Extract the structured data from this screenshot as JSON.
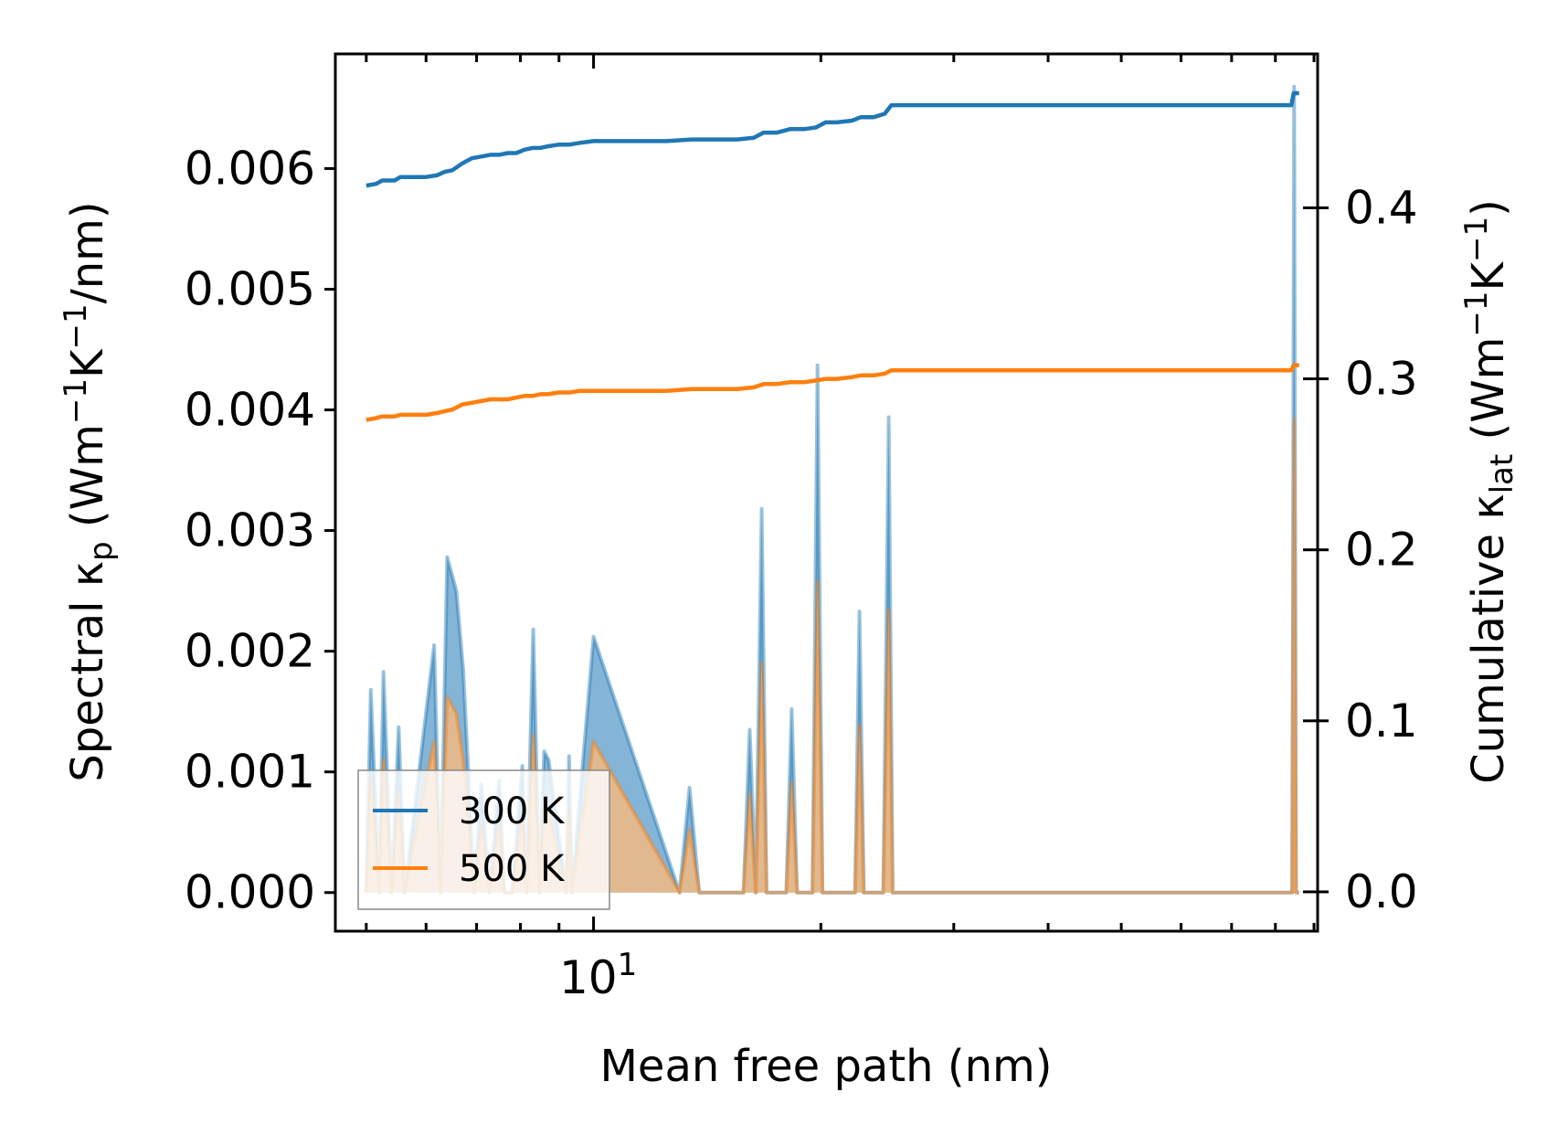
{
  "chart_data": {
    "type": "line",
    "xscale": "log",
    "xlim": [
      4.55,
      91
    ],
    "ylim": [
      -0.00032,
      0.00695
    ],
    "y2lim": [
      -0.023,
      0.49
    ],
    "xlabel": "Mean free path (nm)",
    "ylabel_left": {
      "main": "Spectral κ",
      "sub": "p",
      "rest": " (Wm",
      "sup1": "−1",
      "mid": "K",
      "sup2": "−1",
      "end": "/nm)"
    },
    "ylabel_right": {
      "main": "Cumulative κ",
      "sub": "lat",
      "rest": " (Wm",
      "sup1": "−1",
      "mid": "K",
      "sup2": "−1",
      "end": ")"
    },
    "x_ticks": [
      {
        "value": 10,
        "base": "10",
        "exp": "1"
      }
    ],
    "y_ticks_left": [
      {
        "value": 0.0,
        "label": "0.000"
      },
      {
        "value": 0.001,
        "label": "0.001"
      },
      {
        "value": 0.002,
        "label": "0.002"
      },
      {
        "value": 0.003,
        "label": "0.003"
      },
      {
        "value": 0.004,
        "label": "0.004"
      },
      {
        "value": 0.005,
        "label": "0.005"
      },
      {
        "value": 0.006,
        "label": "0.006"
      }
    ],
    "y_ticks_right": [
      {
        "value": 0.0,
        "label": "0.0"
      },
      {
        "value": 0.1,
        "label": "0.1"
      },
      {
        "value": 0.2,
        "label": "0.2"
      },
      {
        "value": 0.3,
        "label": "0.3"
      },
      {
        "value": 0.4,
        "label": "0.4"
      }
    ],
    "x_minor_ticks": [
      5,
      6,
      7,
      8,
      9,
      20,
      30,
      40,
      50,
      60,
      70,
      80,
      90
    ],
    "spectral_x": [
      5.0,
      5.07,
      5.2,
      5.27,
      5.4,
      5.52,
      5.62,
      6.15,
      6.27,
      6.4,
      6.58,
      6.72,
      6.95,
      7.1,
      7.28,
      7.5,
      7.62,
      7.8,
      8.05,
      8.15,
      8.32,
      8.48,
      8.6,
      8.72,
      9.2,
      9.28,
      9.36,
      10.0,
      13.0,
      13.4,
      13.8,
      15.8,
      16.1,
      16.4,
      16.7,
      16.95,
      17.3,
      18.0,
      18.3,
      18.6,
      19.5,
      19.8,
      20.1,
      22.2,
      22.5,
      22.8,
      24.2,
      24.6,
      24.9,
      84.2,
      84.7,
      85.2,
      86.0
    ],
    "series": [
      {
        "name": "300 K",
        "color": "#1f77b4",
        "fill": "#1f77b4",
        "spectral": [
          0,
          0.00168,
          0,
          0.00183,
          0,
          0.00137,
          0,
          0.00205,
          0,
          0.00278,
          0.0025,
          0.00185,
          0,
          0.0009,
          0,
          0.00093,
          0,
          0,
          0.00105,
          0,
          0.00218,
          0,
          0.00117,
          0.0011,
          0,
          0.00113,
          0,
          0.00212,
          0,
          0.00087,
          0,
          0,
          0.00135,
          0,
          0.00318,
          0,
          0,
          0,
          0.00152,
          0,
          0,
          0.00437,
          0,
          0,
          0.00233,
          0,
          0,
          0.00394,
          0,
          0,
          0.00668,
          0,
          0
        ],
        "cumulative_x": [
          5.0,
          5.15,
          5.25,
          5.45,
          5.55,
          5.75,
          6.0,
          6.2,
          6.35,
          6.5,
          6.7,
          6.9,
          7.1,
          7.3,
          7.5,
          7.7,
          7.9,
          8.1,
          8.3,
          8.5,
          8.7,
          9.0,
          9.3,
          9.6,
          10.0,
          11.0,
          12.5,
          13.5,
          14.5,
          15.5,
          16.3,
          16.8,
          17.5,
          18.2,
          19.0,
          19.7,
          20.3,
          21.0,
          22.0,
          22.6,
          23.5,
          24.3,
          24.8,
          30.0,
          50.0,
          84.0,
          84.6,
          86.0
        ],
        "cumulative": [
          0.413,
          0.414,
          0.416,
          0.416,
          0.418,
          0.418,
          0.418,
          0.419,
          0.421,
          0.422,
          0.426,
          0.429,
          0.43,
          0.431,
          0.431,
          0.432,
          0.432,
          0.434,
          0.435,
          0.435,
          0.436,
          0.437,
          0.437,
          0.438,
          0.439,
          0.439,
          0.439,
          0.44,
          0.44,
          0.44,
          0.441,
          0.444,
          0.444,
          0.446,
          0.446,
          0.447,
          0.45,
          0.45,
          0.451,
          0.453,
          0.453,
          0.455,
          0.46,
          0.46,
          0.46,
          0.46,
          0.467,
          0.467
        ]
      },
      {
        "name": "500 K",
        "color": "#ff7f0e",
        "fill": "#ffbb78",
        "spectral": [
          0,
          0.00095,
          0,
          0.0011,
          0,
          0.00082,
          0,
          0.00125,
          0,
          0.00162,
          0.00148,
          0.0011,
          0,
          0.00055,
          0,
          0.00057,
          0,
          0,
          0.00062,
          0,
          0.0013,
          0,
          0.0007,
          0.00066,
          0,
          0.00068,
          0,
          0.00125,
          0,
          0.00052,
          0,
          0,
          0.00081,
          0,
          0.0019,
          0,
          0,
          0,
          0.00091,
          0,
          0,
          0.00258,
          0,
          0,
          0.00139,
          0,
          0,
          0.00234,
          0,
          0,
          0.00392,
          0,
          0
        ],
        "cumulative_x": [
          5.0,
          5.15,
          5.25,
          5.45,
          5.55,
          5.75,
          6.0,
          6.2,
          6.35,
          6.5,
          6.7,
          6.9,
          7.1,
          7.3,
          7.5,
          7.7,
          7.9,
          8.1,
          8.3,
          8.5,
          8.7,
          9.0,
          9.3,
          9.6,
          10.0,
          11.0,
          12.5,
          13.5,
          14.5,
          15.5,
          16.3,
          16.8,
          17.5,
          18.2,
          19.0,
          19.7,
          20.3,
          21.0,
          22.0,
          22.6,
          23.5,
          24.3,
          24.8,
          30.0,
          50.0,
          84.0,
          84.6,
          86.0
        ],
        "cumulative": [
          0.276,
          0.277,
          0.278,
          0.278,
          0.279,
          0.279,
          0.279,
          0.28,
          0.281,
          0.282,
          0.285,
          0.286,
          0.287,
          0.288,
          0.288,
          0.288,
          0.289,
          0.29,
          0.29,
          0.291,
          0.291,
          0.292,
          0.292,
          0.293,
          0.293,
          0.293,
          0.293,
          0.294,
          0.294,
          0.294,
          0.295,
          0.297,
          0.297,
          0.298,
          0.298,
          0.299,
          0.3,
          0.3,
          0.301,
          0.302,
          0.302,
          0.303,
          0.305,
          0.305,
          0.305,
          0.305,
          0.308,
          0.308
        ]
      }
    ],
    "legend": {
      "location": "lower-left",
      "entries": [
        "300 K",
        "500 K"
      ]
    }
  }
}
